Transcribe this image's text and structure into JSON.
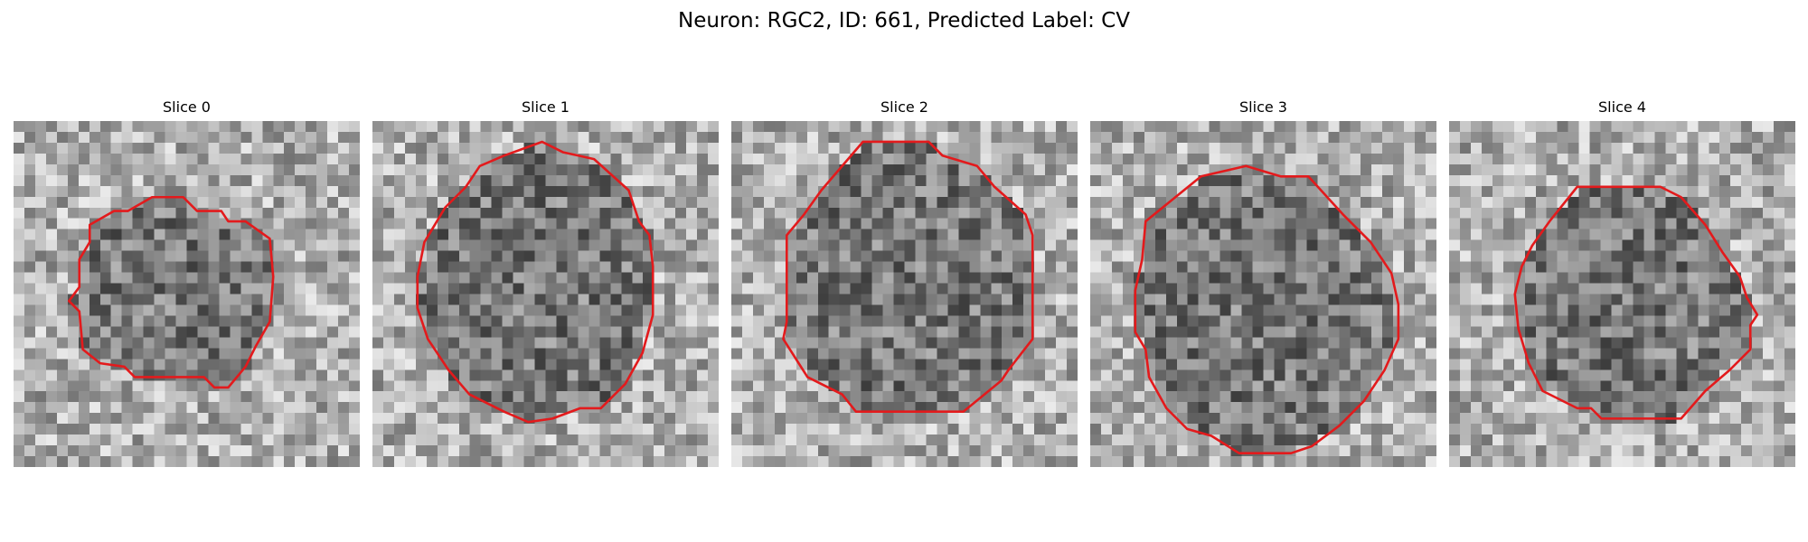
{
  "figure": {
    "title": "Neuron: RGC2, ID: 661, Predicted Label: CV"
  },
  "colors": {
    "background": "#ffffff",
    "contour": "#e31a1c"
  },
  "slices": [
    {
      "label": "Slice 0",
      "seed": 11,
      "contour": [
        [
          0.4,
          0.22
        ],
        [
          0.49,
          0.22
        ],
        [
          0.53,
          0.26
        ],
        [
          0.6,
          0.26
        ],
        [
          0.62,
          0.29
        ],
        [
          0.67,
          0.29
        ],
        [
          0.74,
          0.34
        ],
        [
          0.75,
          0.45
        ],
        [
          0.74,
          0.58
        ],
        [
          0.7,
          0.65
        ],
        [
          0.67,
          0.71
        ],
        [
          0.62,
          0.77
        ],
        [
          0.58,
          0.77
        ],
        [
          0.55,
          0.74
        ],
        [
          0.35,
          0.74
        ],
        [
          0.32,
          0.71
        ],
        [
          0.25,
          0.7
        ],
        [
          0.2,
          0.66
        ],
        [
          0.19,
          0.55
        ],
        [
          0.16,
          0.52
        ],
        [
          0.19,
          0.48
        ],
        [
          0.19,
          0.4
        ],
        [
          0.22,
          0.35
        ],
        [
          0.22,
          0.3
        ],
        [
          0.29,
          0.26
        ],
        [
          0.33,
          0.26
        ]
      ]
    },
    {
      "label": "Slice 1",
      "seed": 23,
      "contour": [
        [
          0.38,
          0.1
        ],
        [
          0.49,
          0.06
        ],
        [
          0.55,
          0.09
        ],
        [
          0.64,
          0.11
        ],
        [
          0.74,
          0.2
        ],
        [
          0.77,
          0.29
        ],
        [
          0.8,
          0.33
        ],
        [
          0.81,
          0.42
        ],
        [
          0.81,
          0.56
        ],
        [
          0.78,
          0.67
        ],
        [
          0.73,
          0.76
        ],
        [
          0.66,
          0.83
        ],
        [
          0.6,
          0.83
        ],
        [
          0.52,
          0.86
        ],
        [
          0.45,
          0.87
        ],
        [
          0.38,
          0.84
        ],
        [
          0.28,
          0.79
        ],
        [
          0.22,
          0.72
        ],
        [
          0.16,
          0.63
        ],
        [
          0.13,
          0.54
        ],
        [
          0.13,
          0.45
        ],
        [
          0.15,
          0.35
        ],
        [
          0.21,
          0.25
        ],
        [
          0.27,
          0.19
        ],
        [
          0.31,
          0.13
        ]
      ]
    },
    {
      "label": "Slice 2",
      "seed": 37,
      "contour": [
        [
          0.38,
          0.06
        ],
        [
          0.57,
          0.06
        ],
        [
          0.61,
          0.1
        ],
        [
          0.71,
          0.13
        ],
        [
          0.76,
          0.19
        ],
        [
          0.85,
          0.27
        ],
        [
          0.87,
          0.33
        ],
        [
          0.87,
          0.63
        ],
        [
          0.8,
          0.72
        ],
        [
          0.78,
          0.75
        ],
        [
          0.67,
          0.84
        ],
        [
          0.62,
          0.84
        ],
        [
          0.55,
          0.84
        ],
        [
          0.36,
          0.84
        ],
        [
          0.32,
          0.79
        ],
        [
          0.22,
          0.74
        ],
        [
          0.15,
          0.63
        ],
        [
          0.16,
          0.58
        ],
        [
          0.16,
          0.33
        ],
        [
          0.21,
          0.27
        ],
        [
          0.26,
          0.2
        ]
      ]
    },
    {
      "label": "Slice 3",
      "seed": 53,
      "contour": [
        [
          0.32,
          0.16
        ],
        [
          0.45,
          0.13
        ],
        [
          0.55,
          0.16
        ],
        [
          0.63,
          0.16
        ],
        [
          0.73,
          0.27
        ],
        [
          0.81,
          0.35
        ],
        [
          0.87,
          0.44
        ],
        [
          0.89,
          0.53
        ],
        [
          0.89,
          0.63
        ],
        [
          0.85,
          0.72
        ],
        [
          0.79,
          0.81
        ],
        [
          0.72,
          0.88
        ],
        [
          0.64,
          0.94
        ],
        [
          0.58,
          0.96
        ],
        [
          0.43,
          0.96
        ],
        [
          0.35,
          0.91
        ],
        [
          0.28,
          0.89
        ],
        [
          0.22,
          0.83
        ],
        [
          0.17,
          0.74
        ],
        [
          0.16,
          0.66
        ],
        [
          0.13,
          0.61
        ],
        [
          0.13,
          0.49
        ],
        [
          0.15,
          0.4
        ],
        [
          0.16,
          0.29
        ]
      ]
    },
    {
      "label": "Slice 4",
      "seed": 71,
      "contour": [
        [
          0.37,
          0.19
        ],
        [
          0.46,
          0.19
        ],
        [
          0.56,
          0.19
        ],
        [
          0.61,
          0.19
        ],
        [
          0.67,
          0.22
        ],
        [
          0.74,
          0.3
        ],
        [
          0.79,
          0.38
        ],
        [
          0.84,
          0.45
        ],
        [
          0.86,
          0.51
        ],
        [
          0.89,
          0.56
        ],
        [
          0.87,
          0.59
        ],
        [
          0.87,
          0.66
        ],
        [
          0.81,
          0.72
        ],
        [
          0.74,
          0.78
        ],
        [
          0.67,
          0.86
        ],
        [
          0.49,
          0.86
        ],
        [
          0.44,
          0.86
        ],
        [
          0.41,
          0.83
        ],
        [
          0.37,
          0.83
        ],
        [
          0.27,
          0.78
        ],
        [
          0.23,
          0.7
        ],
        [
          0.2,
          0.6
        ],
        [
          0.19,
          0.5
        ],
        [
          0.21,
          0.42
        ],
        [
          0.24,
          0.36
        ],
        [
          0.29,
          0.29
        ]
      ]
    }
  ]
}
